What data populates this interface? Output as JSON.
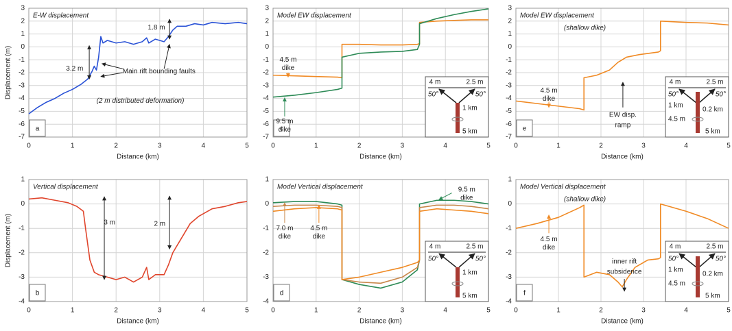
{
  "chart_data": [
    {
      "type": "line",
      "title": "E-W displacement",
      "title_color": "#2a52d6",
      "panel_label": "a",
      "ylabel": "Displacement (m)",
      "xlabel": "Distance (km)",
      "x": [
        0,
        0.2,
        0.4,
        0.6,
        0.8,
        1.0,
        1.2,
        1.35,
        1.45,
        1.5,
        1.55,
        1.6,
        1.65,
        1.7,
        1.8,
        2.0,
        2.2,
        2.4,
        2.6,
        2.7,
        2.75,
        2.9,
        3.1,
        3.2,
        3.3,
        3.4,
        3.6,
        3.8,
        4.0,
        4.2,
        4.5,
        4.8,
        5.0
      ],
      "series": [
        {
          "color": "#2a52d6",
          "values": [
            -5.2,
            -4.7,
            -4.3,
            -4.0,
            -3.6,
            -3.3,
            -2.9,
            -2.5,
            -1.9,
            -1.5,
            -1.8,
            -0.8,
            0.8,
            0.3,
            0.5,
            0.3,
            0.4,
            0.2,
            0.4,
            0.7,
            0.3,
            0.6,
            0.4,
            0.8,
            1.3,
            1.6,
            1.6,
            1.8,
            1.7,
            1.9,
            1.8,
            1.9,
            1.8
          ]
        }
      ],
      "xlim": [
        0,
        5
      ],
      "xticks": [
        0,
        1,
        2,
        3,
        4,
        5
      ],
      "ylim": [
        -7,
        3
      ],
      "yticks": [
        -7,
        -6,
        -5,
        -4,
        -3,
        -2,
        -1,
        0,
        1,
        2,
        3
      ],
      "grid": true,
      "annotations": [
        {
          "lines": [
            "3.2 m"
          ]
        },
        {
          "lines": [
            "Main rift bounding faults"
          ]
        },
        {
          "lines": [
            "1.8 m"
          ]
        },
        {
          "lines": [
            "(2 m distributed deformation)"
          ]
        }
      ]
    },
    {
      "type": "line",
      "title": "Vertical displacement",
      "title_color": "#e0452c",
      "panel_label": "b",
      "ylabel": "Displacement (m)",
      "xlabel": "Distance (km)",
      "x": [
        0,
        0.3,
        0.6,
        0.9,
        1.1,
        1.25,
        1.3,
        1.4,
        1.5,
        1.6,
        1.8,
        2.0,
        2.2,
        2.4,
        2.6,
        2.7,
        2.75,
        2.9,
        3.1,
        3.2,
        3.3,
        3.5,
        3.7,
        3.9,
        4.2,
        4.5,
        4.8,
        5.0
      ],
      "series": [
        {
          "color": "#e0452c",
          "values": [
            0.2,
            0.25,
            0.15,
            0.05,
            -0.1,
            -0.3,
            -1,
            -2.3,
            -2.8,
            -2.9,
            -3.0,
            -3.1,
            -3.0,
            -3.2,
            -3.0,
            -2.6,
            -3.1,
            -2.9,
            -2.9,
            -2.5,
            -2.0,
            -1.4,
            -0.8,
            -0.5,
            -0.2,
            -0.1,
            0.05,
            0.1
          ]
        }
      ],
      "xlim": [
        0,
        5
      ],
      "xticks": [
        0,
        1,
        2,
        3,
        4,
        5
      ],
      "ylim": [
        -4,
        1
      ],
      "yticks": [
        -4,
        -3,
        -2,
        -1,
        0,
        1
      ],
      "grid": true,
      "annotations": [
        {
          "lines": [
            "3 m"
          ]
        },
        {
          "lines": [
            "2 m"
          ]
        }
      ]
    },
    {
      "type": "line",
      "title": "Model EW displacement",
      "title_color": "#2e8b57",
      "panel_label": "c",
      "xlabel": "Distance (km)",
      "x": [
        0,
        0.5,
        1,
        1.5,
        1.6,
        1.6,
        2,
        2.5,
        3,
        3.35,
        3.4,
        3.4,
        3.8,
        4.2,
        4.6,
        5
      ],
      "series": [
        {
          "color": "#f08a24",
          "values": [
            -2.2,
            -2.25,
            -2.3,
            -2.35,
            -2.4,
            0.2,
            0.2,
            0.15,
            0.15,
            0.2,
            0.25,
            1.9,
            2.0,
            2.05,
            2.1,
            2.1
          ]
        },
        {
          "color": "#2e8b57",
          "values": [
            -3.9,
            -3.75,
            -3.55,
            -3.3,
            -3.2,
            -0.8,
            -0.5,
            -0.4,
            -0.35,
            -0.2,
            0.2,
            1.8,
            2.2,
            2.5,
            2.75,
            2.95
          ]
        }
      ],
      "xlim": [
        0,
        5
      ],
      "xticks": [
        0,
        1,
        2,
        3,
        4,
        5
      ],
      "ylim": [
        -7,
        3
      ],
      "yticks": [
        -7,
        -6,
        -5,
        -4,
        -3,
        -2,
        -1,
        0,
        1,
        2,
        3
      ],
      "grid": true,
      "annotations": [
        {
          "lines": [
            "4.5 m",
            "dike"
          ]
        },
        {
          "lines": [
            "9.5 m",
            "dike"
          ]
        }
      ],
      "inset": {
        "left": "4 m",
        "right": "2.5 m",
        "dip_left": "50°",
        "dip_right": "50°",
        "top": "1 km",
        "bottom": "5 km"
      }
    },
    {
      "type": "line",
      "title": "Model Vertical displacement",
      "title_color": "#2e8b57",
      "panel_label": "d",
      "xlabel": "Distance (km)",
      "x": [
        0,
        0.5,
        1,
        1.5,
        1.6,
        1.6,
        2,
        2.5,
        3,
        3.35,
        3.4,
        3.4,
        3.8,
        4.2,
        4.6,
        5
      ],
      "series": [
        {
          "color": "#2e8b57",
          "values": [
            0.05,
            0.1,
            0.1,
            0.0,
            -0.05,
            -3.1,
            -3.3,
            -3.45,
            -3.2,
            -2.7,
            -2.3,
            0.0,
            0.15,
            0.15,
            0.1,
            0.0
          ]
        },
        {
          "color": "#c8874a",
          "values": [
            -0.1,
            -0.05,
            -0.05,
            -0.1,
            -0.15,
            -3.1,
            -3.2,
            -3.25,
            -3.0,
            -2.6,
            -2.3,
            -0.15,
            -0.05,
            -0.05,
            -0.1,
            -0.2
          ]
        },
        {
          "color": "#f08a24",
          "values": [
            -0.3,
            -0.2,
            -0.15,
            -0.2,
            -0.25,
            -3.1,
            -3.0,
            -2.8,
            -2.6,
            -2.4,
            -2.3,
            -0.3,
            -0.2,
            -0.25,
            -0.3,
            -0.4
          ]
        }
      ],
      "xlim": [
        0,
        5
      ],
      "xticks": [
        0,
        1,
        2,
        3,
        4,
        5
      ],
      "ylim": [
        -4,
        1
      ],
      "yticks": [
        -4,
        -3,
        -2,
        -1,
        0,
        1
      ],
      "grid": true,
      "annotations": [
        {
          "lines": [
            "9.5 m",
            "dike"
          ]
        },
        {
          "lines": [
            "7.0 m",
            "dike"
          ]
        },
        {
          "lines": [
            "4.5 m",
            "dike"
          ]
        }
      ],
      "inset": {
        "left": "4 m",
        "right": "2.5 m",
        "dip_left": "50°",
        "dip_right": "50°",
        "top": "1 km",
        "bottom": "5 km"
      }
    },
    {
      "type": "line",
      "title": "Model EW displacement",
      "subtitle": "(shallow dike)",
      "title_color": "#f08a24",
      "panel_label": "e",
      "xlabel": "Distance (km)",
      "x": [
        0,
        0.5,
        1,
        1.5,
        1.6,
        1.6,
        1.9,
        2.2,
        2.4,
        2.6,
        2.9,
        3.35,
        3.4,
        3.4,
        4,
        4.5,
        5
      ],
      "series": [
        {
          "color": "#f08a24",
          "values": [
            -4.2,
            -4.4,
            -4.6,
            -4.8,
            -4.9,
            -2.4,
            -2.2,
            -1.8,
            -1.2,
            -0.8,
            -0.6,
            -0.4,
            -0.3,
            2.0,
            1.9,
            1.85,
            1.7
          ]
        }
      ],
      "xlim": [
        0,
        5
      ],
      "xticks": [
        0,
        1,
        2,
        3,
        4,
        5
      ],
      "ylim": [
        -7,
        3
      ],
      "yticks": [
        -7,
        -6,
        -5,
        -4,
        -3,
        -2,
        -1,
        0,
        1,
        2,
        3
      ],
      "grid": true,
      "annotations": [
        {
          "lines": [
            "4.5 m",
            "dike"
          ]
        },
        {
          "lines": [
            "EW disp.",
            "ramp"
          ]
        }
      ],
      "inset": {
        "left": "4 m",
        "right": "2.5 m",
        "dip_left": "50°",
        "dip_right": "50°",
        "top": "1 km",
        "width": "0.2 km",
        "opening": "4.5 m",
        "bottom": "5 km"
      }
    },
    {
      "type": "line",
      "title": "Model Vertical displacement",
      "subtitle": "(shallow dike)",
      "title_color": "#f08a24",
      "panel_label": "f",
      "xlabel": "Distance (km)",
      "x": [
        0,
        0.5,
        1,
        1.5,
        1.6,
        1.6,
        1.9,
        2.2,
        2.4,
        2.5,
        2.6,
        2.8,
        3.1,
        3.35,
        3.4,
        3.4,
        4,
        4.5,
        5
      ],
      "series": [
        {
          "color": "#f08a24",
          "values": [
            -1.0,
            -0.8,
            -0.55,
            -0.15,
            -0.05,
            -3.0,
            -2.8,
            -2.9,
            -3.2,
            -3.4,
            -3.1,
            -2.6,
            -2.3,
            -2.25,
            -2.2,
            0.0,
            -0.3,
            -0.6,
            -1.0
          ]
        }
      ],
      "xlim": [
        0,
        5
      ],
      "xticks": [
        0,
        1,
        2,
        3,
        4,
        5
      ],
      "ylim": [
        -4,
        1
      ],
      "yticks": [
        -4,
        -3,
        -2,
        -1,
        0,
        1
      ],
      "grid": true,
      "annotations": [
        {
          "lines": [
            "4.5 m",
            "dike"
          ]
        },
        {
          "lines": [
            "inner rift",
            "subsidence"
          ]
        }
      ],
      "inset": {
        "left": "4 m",
        "right": "2.5 m",
        "dip_left": "50°",
        "dip_right": "50°",
        "top": "1 km",
        "width": "0.2 km",
        "opening": "4.5 m",
        "bottom": "5 km"
      }
    }
  ]
}
